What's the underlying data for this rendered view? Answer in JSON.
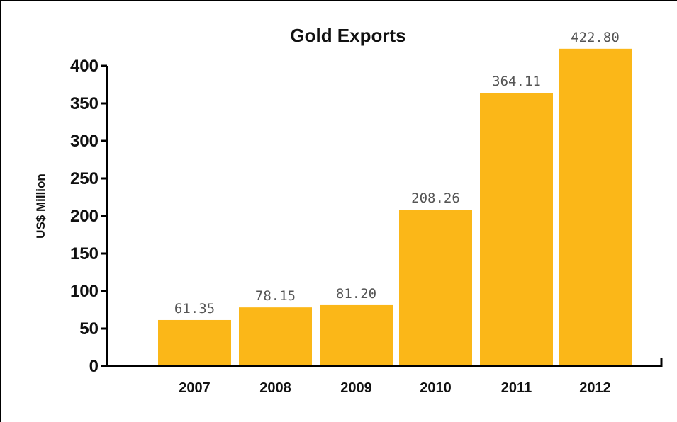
{
  "chart_data": {
    "type": "bar",
    "title": "Gold Exports",
    "xlabel": "",
    "ylabel": "US$ Million",
    "categories": [
      "2007",
      "2008",
      "2009",
      "2010",
      "2011",
      "2012"
    ],
    "values": [
      61.35,
      78.15,
      81.2,
      208.26,
      364.11,
      422.8
    ],
    "data_labels": [
      "61.35",
      "78.15",
      "81.20",
      "208.26",
      "364.11",
      "422.80"
    ],
    "yticks": [
      0,
      50,
      100,
      150,
      200,
      250,
      300,
      350,
      400
    ],
    "ylim": [
      0,
      400
    ],
    "grid": false,
    "bar_color": "#FBB718"
  }
}
